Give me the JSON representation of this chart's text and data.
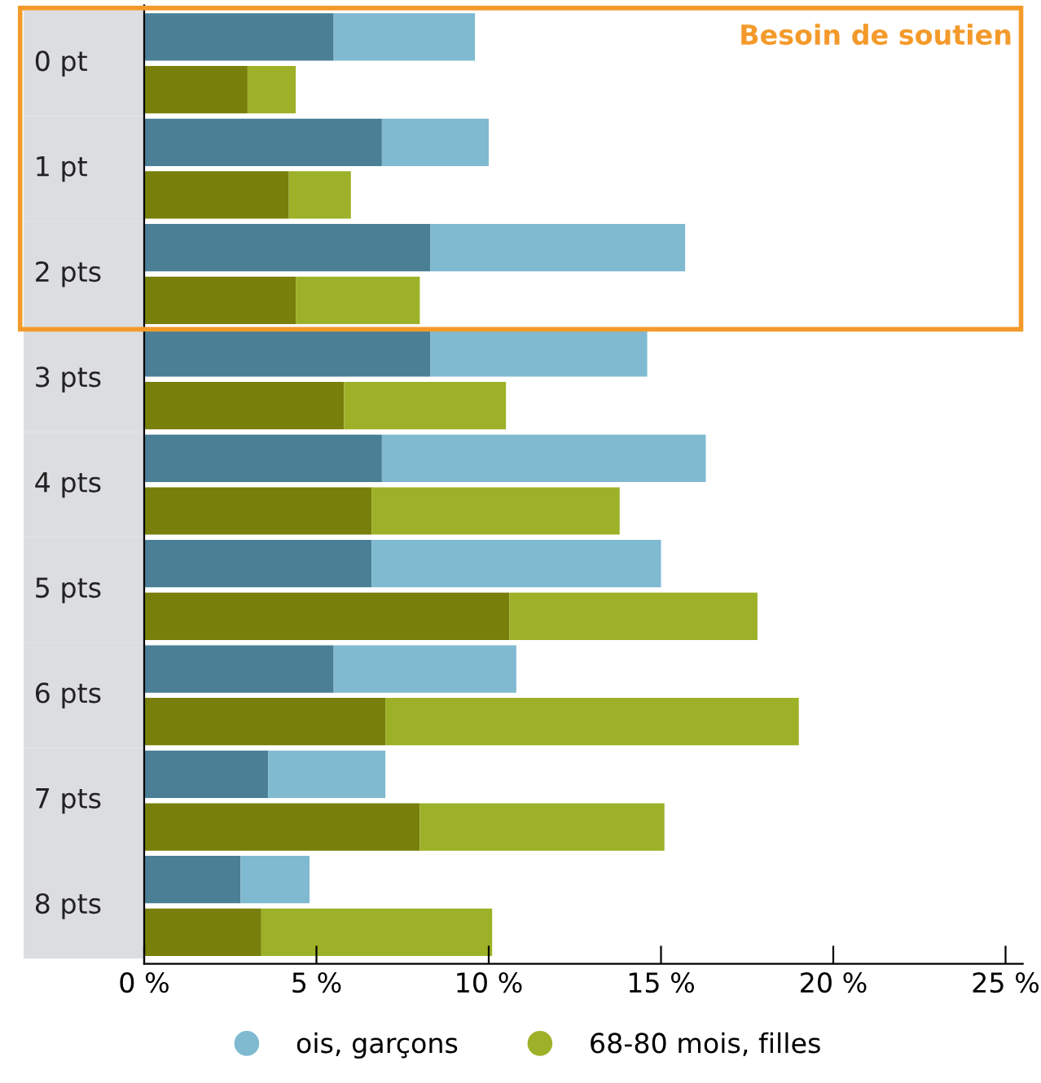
{
  "chart_data": {
    "type": "bar",
    "orientation": "horizontal",
    "stacked": true,
    "categories": [
      "0 pt",
      null,
      "1 pt",
      null,
      "2 pts",
      null,
      "3 pts",
      null,
      "4 pts",
      null,
      "5 pts",
      null,
      "6 pts",
      null,
      "7 pts",
      null,
      "8 pts",
      null
    ],
    "series": [
      {
        "color": "#4a7f96",
        "values": [
          5.5,
          null,
          6.9,
          null,
          8.3,
          null,
          8.3,
          null,
          6.9,
          null,
          6.6,
          null,
          5.5,
          null,
          3.6,
          null,
          2.8,
          null
        ]
      },
      {
        "name": "ois, garçons",
        "color": "#7fbad0",
        "values": [
          4.1,
          null,
          3.1,
          null,
          7.4,
          null,
          6.3,
          null,
          9.4,
          null,
          8.4,
          null,
          5.3,
          null,
          3.4,
          null,
          2.0,
          null
        ]
      },
      {
        "color": "#787f0a",
        "values": [
          null,
          3.0,
          null,
          4.2,
          null,
          4.4,
          null,
          5.8,
          null,
          6.6,
          null,
          10.6,
          null,
          7.0,
          null,
          8.0,
          null,
          3.4
        ]
      },
      {
        "name": "68-80 mois, filles",
        "color": "#9db128",
        "values": [
          null,
          1.4,
          null,
          1.8,
          null,
          3.6,
          null,
          4.7,
          null,
          7.2,
          null,
          7.2,
          null,
          12.0,
          null,
          7.1,
          null,
          6.7
        ]
      }
    ],
    "xlim": [
      0,
      25.5
    ],
    "xticks": [
      {
        "value": 0,
        "label": "0 %"
      },
      {
        "value": 5,
        "label": "5 %"
      },
      {
        "value": 10,
        "label": "10 %"
      },
      {
        "value": 15,
        "label": "15 %"
      },
      {
        "value": 20,
        "label": "20 %"
      },
      {
        "value": 25,
        "label": "25 %"
      }
    ],
    "annotations": [
      "Besoin de soutien"
    ],
    "grid": false,
    "legend": "bottom"
  }
}
